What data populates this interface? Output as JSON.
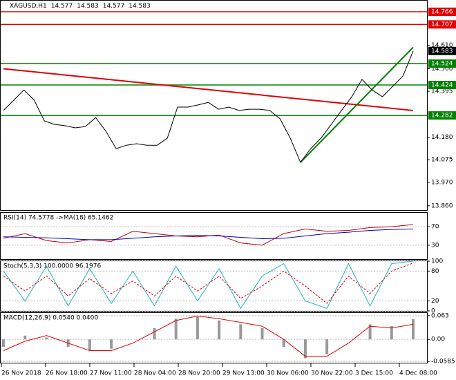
{
  "header": {
    "symbol": "XAGUSD,H1",
    "ohlc": [
      14.577,
      14.583,
      14.577,
      14.583
    ]
  },
  "xlabels": [
    "26 Nov 2018",
    "26 Nov 18:00",
    "27 Nov 11:00",
    "28 Nov 04:00",
    "28 Nov 20:00",
    "29 Nov 13:00",
    "30 Nov 06:00",
    "30 Nov 22:00",
    "3 Dec 15:00",
    "4 Dec 08:00"
  ],
  "chart_data": [
    {
      "type": "line",
      "color": "#000000",
      "values": [
        14.305,
        14.353,
        14.401,
        14.353,
        14.256,
        14.24,
        14.234,
        14.224,
        14.23,
        14.272,
        14.208,
        14.127,
        14.143,
        14.15,
        14.143,
        14.143,
        14.176,
        14.321,
        14.321,
        14.331,
        14.343,
        14.311,
        14.321,
        14.305,
        14.311,
        14.311,
        14.305,
        14.266,
        14.176,
        14.063,
        14.127,
        14.176,
        14.24,
        14.305,
        14.369,
        14.45,
        14.401,
        14.369,
        14.418,
        14.466,
        14.583
      ],
      "ylim": [
        13.837,
        14.821
      ],
      "yticks": [
        {
          "value": 14.61,
          "label": "14.610"
        },
        {
          "value": 14.5,
          "label": "14.500"
        },
        14.395,
        {
          "value": 14.18,
          "label": "14.180"
        },
        14.075,
        {
          "value": 13.97,
          "label": "13.970"
        },
        {
          "value": 13.86,
          "label": "13.860"
        }
      ],
      "levels": [
        {
          "value": 14.766,
          "color": "#e00000"
        },
        {
          "value": 14.707,
          "color": "#e00000"
        },
        {
          "value": 14.524,
          "color": "#008000"
        },
        {
          "value": 14.424,
          "color": "#008000"
        },
        {
          "value": 14.282,
          "color": "#008000"
        },
        {
          "value": 14.583,
          "color": "#000000"
        }
      ],
      "trendlines": [
        {
          "color": "#e00000",
          "x": [
            0,
            40
          ],
          "y": [
            14.5,
            14.305
          ]
        },
        {
          "color": "#008000",
          "x": [
            29,
            40
          ],
          "y": [
            14.063,
            14.6
          ]
        }
      ]
    },
    {
      "type": "line",
      "title": "RSI(14) 74.5778 ->MA(18) 65.1462",
      "ylim": [
        0,
        100
      ],
      "yticks": [
        70,
        30
      ],
      "series": [
        {
          "color": "#c00000",
          "values": [
            45,
            55,
            40,
            35,
            42,
            38,
            60,
            55,
            50,
            48,
            52,
            35,
            30,
            55,
            65,
            60,
            62,
            68,
            70,
            74.6
          ]
        },
        {
          "color": "#0000c0",
          "values": [
            48,
            47,
            46,
            44,
            42,
            42,
            45,
            48,
            50,
            51,
            50,
            47,
            44,
            45,
            50,
            55,
            58,
            62,
            64,
            65.1
          ]
        }
      ]
    },
    {
      "type": "line",
      "title": "Stoch(5,3,3) 100.0000 96.1976",
      "ylim": [
        0,
        100
      ],
      "yticks": [
        100,
        80,
        20,
        0
      ],
      "series": [
        {
          "color": "#20b2c0",
          "values": [
            80,
            20,
            90,
            10,
            85,
            15,
            80,
            10,
            90,
            20,
            85,
            5,
            70,
            95,
            20,
            5,
            95,
            10,
            95,
            100
          ]
        },
        {
          "color": "#e00000",
          "dash": true,
          "values": [
            70,
            40,
            70,
            30,
            65,
            35,
            60,
            30,
            70,
            40,
            70,
            25,
            50,
            80,
            50,
            15,
            70,
            35,
            80,
            96.2
          ]
        }
      ]
    },
    {
      "type": "macd",
      "title": "MACD(12,26,9) 0.0540 0.0400",
      "ylim": [
        -0.062,
        0.07
      ],
      "yticks": [
        0.063,
        {
          "value": 0,
          "label": "0.00"
        },
        -0.0585
      ],
      "series": [
        {
          "color": "#999999",
          "values": [
            -0.02,
            0.01,
            0.005,
            -0.02,
            -0.03,
            -0.025,
            0.0,
            0.03,
            0.055,
            0.06,
            0.05,
            0.04,
            0.03,
            -0.02,
            -0.05,
            -0.04,
            0.0,
            0.04,
            0.035,
            0.054
          ]
        },
        {
          "color": "#e00000",
          "values": [
            -0.03,
            -0.005,
            0.01,
            -0.01,
            -0.03,
            -0.03,
            -0.01,
            0.02,
            0.05,
            0.062,
            0.055,
            0.045,
            0.035,
            0.0,
            -0.045,
            -0.045,
            -0.01,
            0.035,
            0.03,
            0.04
          ]
        }
      ]
    }
  ]
}
